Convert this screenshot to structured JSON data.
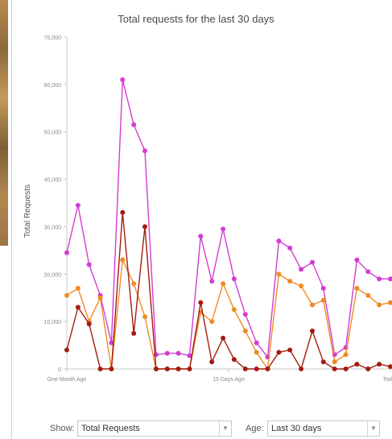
{
  "chart_data": {
    "type": "line",
    "title": "Total requests for the last 30 days",
    "ylabel": "Total Requests",
    "xlabel": "",
    "ylim": [
      0,
      70000
    ],
    "yticks": [
      "0",
      "10,000",
      "20,000",
      "30,000",
      "40,000",
      "50,000",
      "60,000",
      "70,000"
    ],
    "xtick_labels": [
      "One Month Ago",
      "15 Days Ago",
      "Today"
    ],
    "grid": false,
    "series": [
      {
        "color": "#d43cd4",
        "values": [
          24500,
          34500,
          22000,
          15500,
          5500,
          61000,
          51500,
          46000,
          3000,
          3300,
          3300,
          2800,
          28000,
          18500,
          29500,
          19000,
          11500,
          5500,
          2500,
          27000,
          25500,
          21000,
          22500,
          17000,
          3000,
          4500,
          23000,
          20500,
          19000,
          19000
        ]
      },
      {
        "color": "#f08a24",
        "values": [
          15500,
          17000,
          10000,
          15000,
          0,
          23000,
          18000,
          11000,
          0,
          0,
          0,
          0,
          12000,
          10000,
          18000,
          12500,
          8000,
          3500,
          0,
          20000,
          18500,
          17500,
          13500,
          14500,
          1500,
          3000,
          17000,
          15500,
          13500,
          14000
        ]
      },
      {
        "color": "#a31c10",
        "values": [
          4000,
          13000,
          9500,
          0,
          0,
          33000,
          7500,
          30000,
          0,
          0,
          0,
          0,
          14000,
          1500,
          6500,
          2000,
          0,
          0,
          0,
          3500,
          4000,
          0,
          8000,
          1500,
          0,
          0,
          1000,
          0,
          1000,
          500
        ]
      }
    ]
  },
  "controls": {
    "show_label": "Show:",
    "show_value": "Total Requests",
    "age_label": "Age:",
    "age_value": "Last 30 days"
  }
}
